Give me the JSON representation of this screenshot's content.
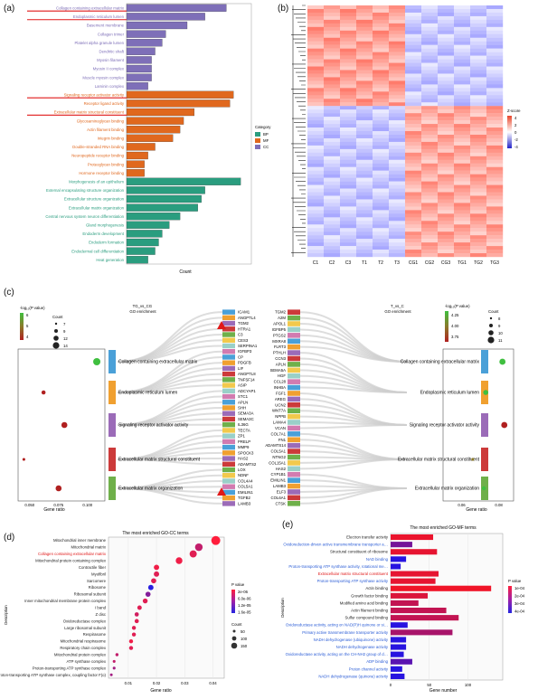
{
  "panels": {
    "a": {
      "label": "(a)"
    },
    "b": {
      "label": "(b)"
    },
    "c": {
      "label": "(c)"
    },
    "d": {
      "label": "(d)"
    },
    "e": {
      "label": "(e)"
    }
  },
  "chart_data": [
    {
      "id": "a",
      "type": "bar",
      "orientation": "horizontal",
      "xlabel": "Count",
      "legend_title": "Category",
      "legend": [
        {
          "name": "BP",
          "color": "#2a9d7f"
        },
        {
          "name": "MF",
          "color": "#e0681e"
        },
        {
          "name": "CC",
          "color": "#7e6fb8"
        }
      ],
      "categories": [
        "Collagen containing extracellular matrix",
        "Endoplasmic reticulum lumen",
        "Basement membrane",
        "Collagen trimer",
        "Platelet alpha granule lumen",
        "Dendritic shaft",
        "Myosin filament",
        "Myosin II complex",
        "Muscle myosin complex",
        "Laminin complex",
        "Signaling receptor activator activity",
        "Receptor ligand activity",
        "Extracellular matrix structural constituent",
        "Glycosaminoglycan binding",
        "Actin filament binding",
        "Integrin binding",
        "Double-stranded RNA binding",
        "Neuropeptide receptor binding",
        "Proteoglycan binding",
        "Hormone receptor binding",
        "Morphogenesis of an epithelium",
        "External encapsulating structure organization",
        "Extracellular structure organization",
        "Extracellular matrix organization",
        "Central nervous system neuron differentiation",
        "Gland morphogenesis",
        "Endoderm development",
        "Endoderm formation",
        "Endodermal cell differentiation",
        "Heat generation"
      ],
      "groups": [
        "CC",
        "CC",
        "CC",
        "CC",
        "CC",
        "CC",
        "CC",
        "CC",
        "CC",
        "CC",
        "MF",
        "MF",
        "MF",
        "MF",
        "MF",
        "MF",
        "MF",
        "MF",
        "MF",
        "MF",
        "BP",
        "BP",
        "BP",
        "BP",
        "BP",
        "BP",
        "BP",
        "BP",
        "BP",
        "BP"
      ],
      "values": [
        14,
        11,
        8.5,
        5.5,
        5,
        4,
        3.5,
        3.5,
        3.5,
        3,
        15,
        14.5,
        9.5,
        8,
        7.5,
        6.5,
        4,
        3,
        2.5,
        2.5,
        16,
        11,
        10.5,
        10,
        7.5,
        6,
        5,
        4.5,
        4,
        3
      ],
      "highlighted": [
        "Collagen containing extracellular matrix",
        "Endoplasmic reticulum lumen",
        "Signaling receptor activator activity",
        "Extracellular matrix structural constituent"
      ],
      "xlim": [
        0,
        17
      ]
    },
    {
      "id": "b",
      "type": "heatmap",
      "columns": [
        "C1",
        "C2",
        "C3",
        "T1",
        "T2",
        "T3",
        "CG1",
        "CG2",
        "CG3",
        "TG1",
        "TG2",
        "TG3"
      ],
      "legend_title": "Z-score",
      "legend_ticks": [
        "4",
        "2",
        "0",
        "-2",
        "-4"
      ],
      "colors": {
        "high": "#e8452a",
        "mid": "#ffffff",
        "low": "#2525c8"
      }
    },
    {
      "id": "c",
      "type": "sankey-dot",
      "left_title": "TG_vs_CG\nGO enrichment",
      "right_title": "T_vs_C\nGO enrichment",
      "terms": [
        "Collagen containing extracellular matrix",
        "Endoplasmic reticulum lumen",
        "Signaling receptor activator activity",
        "Extracellular matrix structural constituent",
        "Extracellular matrix organization"
      ],
      "term_colors": [
        "#4aa0d8",
        "#f0a030",
        "#9b6bb8",
        "#cc3a3a",
        "#6fb04a"
      ],
      "genes_left": [
        "ICAM1",
        "ANGPTL4",
        "TGM2",
        "HTRA1",
        "C3",
        "CES3",
        "SERPINA1",
        "IGFBP3",
        "CP",
        "PDGFB",
        "LIF",
        "ANGPTL8",
        "TNFSF14",
        "ASIP",
        "ADCYAP1",
        "STC1",
        "APLN",
        "SHH",
        "SEMA3A",
        "SEMA3C",
        "IL36G",
        "TECTA",
        "ZP1",
        "PRELP",
        "MMP9",
        "SPOCK3",
        "HAS2",
        "ADAMTS2",
        "LOX",
        "NDNF",
        "COL4A4",
        "COL5A1",
        "EMILIN1",
        "TGFB2",
        "LAMB3"
      ],
      "genes_right": [
        "TGM2",
        "A2M",
        "APOL1",
        "IGFBP5",
        "PTGS2",
        "MXRA8",
        "FLRT3",
        "PTHLH",
        "CCN3",
        "APLN",
        "SEMA5A",
        "HGF",
        "CCL28",
        "INHBA",
        "FGF1",
        "AREG",
        "UCN2",
        "WNT7A",
        "NPPB",
        "LAMA4",
        "VCAN",
        "COL7A1",
        "FN1",
        "ADAMTS14",
        "COL5A1",
        "NTNG2",
        "COL15A1",
        "HAS2",
        "CYP1B1",
        "EMILIN1",
        "LAMB3",
        "ELF3",
        "COL6A1",
        "CTSK"
      ],
      "left_plot": {
        "xlabel": "Gene ratio",
        "xticks": [
          "0.050",
          "0.075",
          "0.100"
        ],
        "legend_color_title": "-log₁₀(P value)",
        "legend_color_ticks": [
          "6",
          "5",
          "4"
        ],
        "legend_size_title": "Count",
        "legend_size_ticks": [
          "7",
          "9",
          "12",
          "14"
        ],
        "points": [
          {
            "term": "Collagen containing extracellular matrix",
            "x": 0.108,
            "count": 14,
            "logp": 6.0
          },
          {
            "term": "Endoplasmic reticulum lumen",
            "x": 0.062,
            "count": 9,
            "logp": 4.3
          },
          {
            "term": "Signaling receptor activator activity",
            "x": 0.08,
            "count": 12,
            "logp": 4.2
          },
          {
            "term": "Extracellular matrix structural constituent",
            "x": 0.045,
            "count": 7,
            "logp": 4.0
          },
          {
            "term": "Extracellular matrix organization",
            "x": 0.075,
            "count": 12,
            "logp": 4.4
          }
        ]
      },
      "right_plot": {
        "xlabel": "Gene ratio",
        "xticks": [
          "0.06",
          "0.08"
        ],
        "legend_color_title": "-log₁₀(P value)",
        "legend_color_ticks": [
          "4.25",
          "4.00",
          "3.75"
        ],
        "legend_size_title": "Count",
        "legend_size_ticks": [
          "8",
          "9",
          "10",
          "11"
        ],
        "points": [
          {
            "term": "Collagen containing extracellular matrix",
            "x": 0.082,
            "count": 11,
            "logp": 4.25
          },
          {
            "term": "Endoplasmic reticulum lumen",
            "x": 0.073,
            "count": 10,
            "logp": 4.2
          },
          {
            "term": "Signaling receptor activator activity",
            "x": 0.083,
            "count": 11,
            "logp": 3.7
          },
          {
            "term": "Extracellular matrix structural constituent",
            "x": 0.066,
            "count": 8,
            "logp": 4.1
          },
          {
            "term": "Extracellular matrix organization",
            "x": 0.072,
            "count": 9,
            "logp": 4.25
          }
        ]
      }
    },
    {
      "id": "d",
      "type": "scatter",
      "title": "The most enriched GO-CC terms",
      "xlabel": "Gene ratio",
      "ylabel": "Description",
      "xticks": [
        "0.01",
        "0.02",
        "0.03",
        "0.04"
      ],
      "xlim": [
        0.003,
        0.044
      ],
      "legend_color_title": "P value",
      "legend_color_ticks": [
        "2e-06",
        "6.0e-06",
        "1.2e-05",
        "1.6e-05"
      ],
      "legend_size_title": "Count",
      "legend_size_ticks": [
        "50",
        "100",
        "150"
      ],
      "terms": [
        "Mitochondrial inner membrane",
        "Mitochondrial matrix",
        "Collagen containing extracellular matrix",
        "Mitochondrial protein containing complex",
        "Contractile fiber",
        "Myofibril",
        "Sarcomere",
        "Ribosome",
        "Ribosomal subunit",
        "Inner mitochondrial membrane protein complex",
        "I band",
        "Z disc",
        "Oxidoreductase complex",
        "Large ribosomal subunit",
        "Respirasome",
        "Mitochondrial respirasome",
        "Respiratory chain complex",
        "Mitochondrial protein complex",
        "ATP synthase complex",
        "Proton-transporting ATP synthase complex",
        "Mitochondrial proton-transporting ATP synthase complex, coupling factor F(o)"
      ],
      "highlighted": [
        "Collagen containing extracellular matrix"
      ],
      "x": [
        0.041,
        0.035,
        0.033,
        0.028,
        0.02,
        0.02,
        0.019,
        0.018,
        0.017,
        0.016,
        0.014,
        0.013,
        0.013,
        0.012,
        0.012,
        0.011,
        0.011,
        0.006,
        0.005,
        0.005,
        0.004
      ],
      "count": [
        150,
        120,
        110,
        100,
        70,
        70,
        65,
        70,
        65,
        60,
        50,
        45,
        45,
        40,
        40,
        40,
        40,
        20,
        15,
        15,
        12
      ],
      "pvalue": [
        2e-06,
        6e-06,
        4e-06,
        3e-06,
        3e-06,
        4e-06,
        4e-06,
        1.6e-05,
        1e-05,
        4e-06,
        4e-06,
        5e-06,
        4e-06,
        4e-06,
        4e-06,
        3e-06,
        4e-06,
        6e-06,
        6e-06,
        8e-06,
        8e-06
      ]
    },
    {
      "id": "e",
      "type": "bar",
      "orientation": "horizontal",
      "title": "The most enriched GO-MF terms",
      "xlabel": "Gene number",
      "ylabel": "Description",
      "xticks": [
        "0",
        "50",
        "100"
      ],
      "xlim": [
        0,
        145
      ],
      "legend_color_title": "P value",
      "legend_color_ticks": [
        "1e-04",
        "2e-04",
        "3e-04",
        "4e-04"
      ],
      "categories": [
        "Electron transfer activity",
        "Oxidoreduction-driven active transmembrane transporter activity",
        "Structural constituent of ribosome",
        "NAD binding",
        "Proton-transporting ATP synthase activity, rotational mechanism",
        "Extracellular matrix structural constituent",
        "Proton-transporting ATP synthase activity",
        "Actin binding",
        "Growth factor binding",
        "Modified amino acid binding",
        "Actin filament binding",
        "Sulfur compound binding",
        "Oxidoreductase activity, acting on NAD(P)H quinone or similar compound as acceptor",
        "Primary active transmembrane transporter activity",
        "NADH dehydrogenase (ubiquinone) activity",
        "NADH dehydrogenase activity",
        "Oxidoreductase activity, acting on the CH-NH2 group of donors",
        "ADP binding",
        "Proton channel activity",
        "NADH dehydrogenase (quinone) activity"
      ],
      "blue_labels": [
        "Oxidoreduction-driven active transmembrane transporter activity",
        "NAD binding",
        "Proton-transporting ATP synthase activity, rotational mechanism",
        "Proton-transporting ATP synthase activity",
        "Oxidoreductase activity, acting on NAD(P)H quinone or similar compound as acceptor",
        "Primary active transmembrane transporter activity",
        "NADH dehydrogenase (ubiquinone) activity",
        "NADH dehydrogenase activity",
        "Oxidoreductase activity, acting on the CH-NH2 group of donors",
        "ADP binding",
        "Proton channel activity",
        "NADH dehydrogenase (quinone) activity"
      ],
      "highlighted": [
        "Extracellular matrix structural constituent"
      ],
      "values": [
        55,
        28,
        60,
        20,
        13,
        62,
        58,
        130,
        48,
        36,
        72,
        88,
        22,
        80,
        20,
        20,
        17,
        28,
        15,
        18
      ],
      "pvalue": [
        2e-05,
        0.00025,
        3e-05,
        0.0004,
        0.0004,
        3e-05,
        3e-05,
        1e-05,
        5e-05,
        0.0001,
        0.0001,
        0.0001,
        0.0004,
        0.00015,
        0.0004,
        0.0004,
        0.0004,
        0.0003,
        0.0004,
        0.0004
      ]
    }
  ]
}
